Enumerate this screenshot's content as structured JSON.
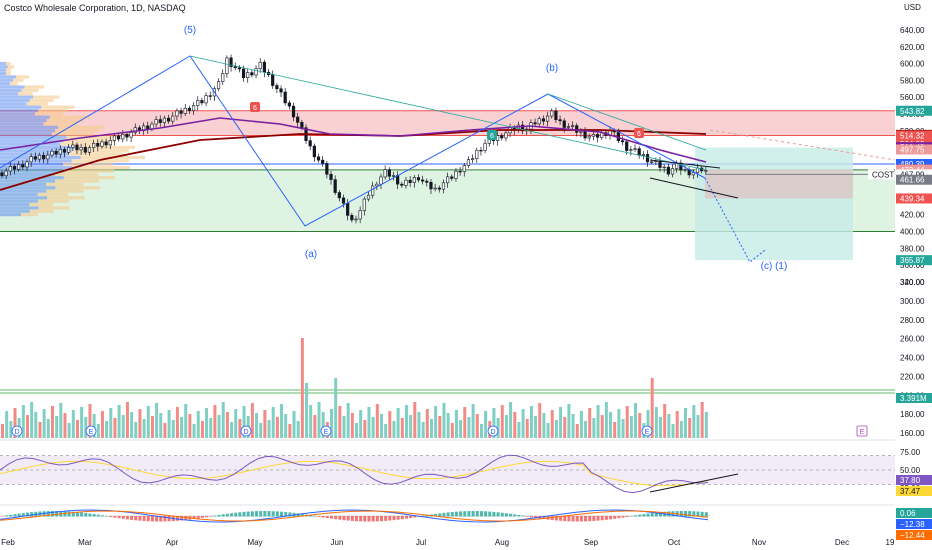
{
  "header": {
    "title": "Costco Wholesale Corporation, 1D, NASDAQ",
    "currency": "USD"
  },
  "colors": {
    "up": "#26a69a",
    "down": "#ef5350",
    "wave": "#2962ff",
    "resistance_zone": "#f7c5c8",
    "support_zone": "#d7f0dc",
    "target_box": "#c6ebe6",
    "ma_long": "#8b0000",
    "ma_mid": "#7b1fa2"
  },
  "axes": {
    "price_ticks": [
      640,
      620,
      600,
      580,
      560,
      540,
      520,
      500,
      480,
      460,
      440,
      420,
      400,
      380,
      360,
      340,
      320,
      300,
      280,
      260,
      240,
      220,
      200,
      180,
      160
    ],
    "rsi_ticks": [
      75,
      50,
      25
    ],
    "months": [
      "Feb",
      "Mar",
      "Apr",
      "May",
      "Jun",
      "Jul",
      "Aug",
      "Sep",
      "Oct",
      "Nov",
      "Dec",
      "19"
    ]
  },
  "price_tags": [
    {
      "text": "543.82",
      "price": 543.82,
      "color": "#26a69a"
    },
    {
      "text": "515.12",
      "price": 515.12,
      "color": "#8b0000"
    },
    {
      "text": "514.32",
      "price": 514.32,
      "color": "#ef5350"
    },
    {
      "text": "504.02",
      "price": 504.02,
      "color": "#ef5350"
    },
    {
      "text": "500.43",
      "price": 500.43,
      "color": "#7b1fa2"
    },
    {
      "text": "497.75",
      "price": 497.75,
      "color": "#ef9a9a"
    },
    {
      "text": "480.39",
      "price": 480.39,
      "color": "#2962ff"
    },
    {
      "text": "473.84",
      "price": 473.84,
      "color": "#ef5350"
    },
    {
      "text": "473.44",
      "price": 473.44,
      "color": "#ef9a9a"
    },
    {
      "text": "467.99",
      "price": 467.99,
      "color": "#ffffff",
      "label": "COST"
    },
    {
      "text": "461.66",
      "price": 461.66,
      "color": "#787b86"
    },
    {
      "text": "439.34",
      "price": 439.34,
      "color": "#ef5350"
    },
    {
      "text": "365.87",
      "price": 365.87,
      "color": "#26a69a"
    }
  ],
  "volume_tag": "3.391M",
  "rsi_tags": [
    {
      "text": "37.80",
      "value": 37.8,
      "color": "#7e57c2"
    },
    {
      "text": "37.47",
      "value": 37.47,
      "color": "#fdd835"
    }
  ],
  "macd_tags": [
    {
      "text": "0.06",
      "color": "#26a69a"
    },
    {
      "text": "−12.38",
      "color": "#2962ff"
    },
    {
      "text": "−12.44",
      "color": "#ff6d00"
    }
  ],
  "wave_labels": [
    "(5)",
    "(a)",
    "(b)",
    "(c) (1)"
  ],
  "event_markers": [
    "D",
    "E",
    "D",
    "E",
    "D",
    "E",
    "E"
  ],
  "candle_badges": [
    "6",
    "6",
    "6"
  ],
  "chart_data": {
    "type": "candlestick",
    "title": "Costco Wholesale Corporation, 1D, NASDAQ",
    "ylabel": "USD",
    "ylim": [
      155,
      660
    ],
    "x_months": [
      "Feb",
      "Mar",
      "Apr",
      "May",
      "Jun",
      "Jul",
      "Aug",
      "Sep",
      "Oct",
      "Nov",
      "Dec"
    ],
    "series": [
      {
        "name": "COST",
        "close_path": [
          [
            0,
            470
          ],
          [
            4,
            478
          ],
          [
            8,
            488
          ],
          [
            12,
            492
          ],
          [
            16,
            500
          ],
          [
            20,
            498
          ],
          [
            24,
            505
          ],
          [
            28,
            512
          ],
          [
            32,
            520
          ],
          [
            36,
            528
          ],
          [
            40,
            535
          ],
          [
            44,
            545
          ],
          [
            48,
            555
          ],
          [
            50,
            565
          ],
          [
            52,
            575
          ],
          [
            53,
            590
          ],
          [
            54,
            605
          ],
          [
            56,
            595
          ],
          [
            58,
            585
          ],
          [
            60,
            590
          ],
          [
            62,
            598
          ],
          [
            64,
            585
          ],
          [
            66,
            570
          ],
          [
            68,
            555
          ],
          [
            70,
            540
          ],
          [
            72,
            520
          ],
          [
            74,
            500
          ],
          [
            76,
            485
          ],
          [
            78,
            470
          ],
          [
            80,
            450
          ],
          [
            82,
            430
          ],
          [
            84,
            412
          ],
          [
            86,
            425
          ],
          [
            88,
            445
          ],
          [
            90,
            460
          ],
          [
            92,
            470
          ],
          [
            94,
            465
          ],
          [
            96,
            455
          ],
          [
            98,
            460
          ],
          [
            100,
            465
          ],
          [
            102,
            455
          ],
          [
            104,
            450
          ],
          [
            106,
            458
          ],
          [
            108,
            465
          ],
          [
            110,
            475
          ],
          [
            112,
            482
          ],
          [
            114,
            495
          ],
          [
            116,
            505
          ],
          [
            118,
            510
          ],
          [
            120,
            515
          ],
          [
            122,
            520
          ],
          [
            124,
            525
          ],
          [
            126,
            522
          ],
          [
            128,
            530
          ],
          [
            130,
            535
          ],
          [
            132,
            540
          ],
          [
            134,
            530
          ],
          [
            136,
            525
          ],
          [
            138,
            520
          ],
          [
            140,
            515
          ],
          [
            142,
            512
          ],
          [
            144,
            516
          ],
          [
            146,
            520
          ],
          [
            148,
            510
          ],
          [
            150,
            500
          ],
          [
            152,
            495
          ],
          [
            154,
            490
          ],
          [
            156,
            483
          ],
          [
            158,
            478
          ],
          [
            160,
            472
          ],
          [
            162,
            478
          ],
          [
            164,
            472
          ],
          [
            166,
            470
          ],
          [
            168,
            474
          ],
          [
            170,
            468
          ]
        ]
      }
    ],
    "levels": [
      {
        "name": "resistance zone",
        "from": 514.32,
        "to": 543.82
      },
      {
        "name": "support zone",
        "from": 400,
        "to": 473.44
      },
      {
        "name": "target",
        "value": 365.87
      }
    ]
  }
}
